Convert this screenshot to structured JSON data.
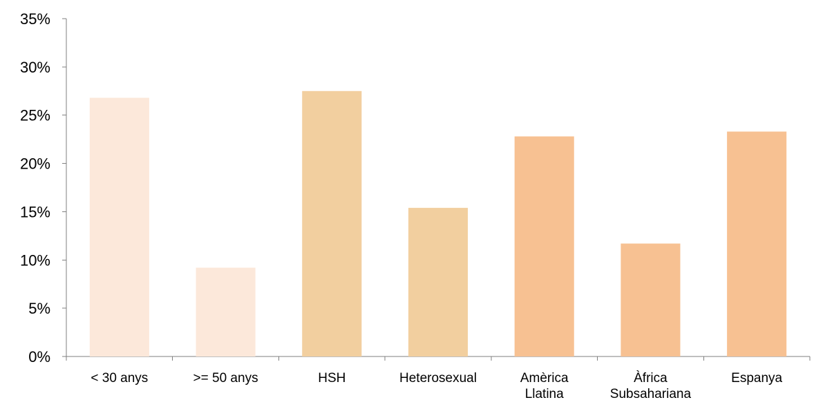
{
  "chart_data": {
    "type": "bar",
    "title": "",
    "xlabel": "",
    "ylabel": "",
    "categories": [
      [
        "< 30 anys"
      ],
      [
        ">= 50 anys"
      ],
      [
        "HSH"
      ],
      [
        "Heterosexual"
      ],
      [
        "Amèrica",
        "Llatina"
      ],
      [
        "Àfrica",
        "Subsahariana"
      ],
      [
        "Espanya"
      ]
    ],
    "values": [
      26.8,
      9.2,
      27.5,
      15.4,
      22.8,
      11.7,
      23.3
    ],
    "bar_colors": [
      "#fce8da",
      "#fce8da",
      "#f2cf9f",
      "#f2cf9f",
      "#f7c192",
      "#f7c192",
      "#f7c192"
    ],
    "ylim": [
      0,
      35
    ],
    "yticks": [
      0,
      5,
      10,
      15,
      20,
      25,
      30,
      35
    ],
    "ytick_labels": [
      "0%",
      "5%",
      "10%",
      "15%",
      "20%",
      "25%",
      "30%",
      "35%"
    ],
    "grid": false,
    "legend": "none"
  }
}
